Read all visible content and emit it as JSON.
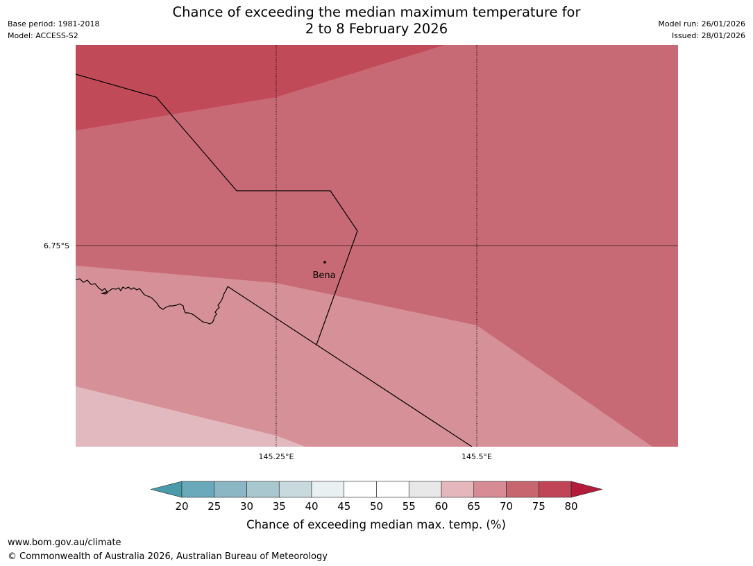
{
  "header": {
    "title_line1": "Chance of exceeding the median maximum temperature for",
    "title_line2": "2 to 8 February 2026",
    "base_period": "Base period: 1981-2018",
    "model": "Model: ACCESS-S2",
    "model_run": "Model run: 26/01/2026",
    "issued": "Issued: 28/01/2026"
  },
  "map": {
    "lat_label": "6.75°S",
    "lon_labels": [
      "145.25°E",
      "145.5°E"
    ],
    "place_name": "Bena",
    "colors": {
      "band_75_80": "#c04a58",
      "band_70_75": "#c86a75",
      "band_65_70": "#d69097",
      "band_60_65": "#e1b9be",
      "border": "#000000",
      "gridline": "#000000"
    }
  },
  "legend": {
    "title": "Chance of exceeding median max. temp. (%)",
    "ticks": [
      "20",
      "25",
      "30",
      "35",
      "40",
      "45",
      "50",
      "55",
      "60",
      "65",
      "70",
      "75",
      "80"
    ],
    "low_extend_color": "#4a9aaa",
    "high_extend_color": "#b21b3c",
    "band_colors": [
      "#6aa9b9",
      "#8bb7c4",
      "#a9c7ce",
      "#c8dade",
      "#e8f0f2",
      "#ffffff",
      "#ffffff",
      "#e8e8e8",
      "#e3b7bc",
      "#d78b94",
      "#c86670",
      "#bf4557"
    ]
  },
  "footer": {
    "url": "www.bom.gov.au/climate",
    "copyright": "© Commonwealth of Australia 2026, Australian Bureau of Meteorology"
  }
}
